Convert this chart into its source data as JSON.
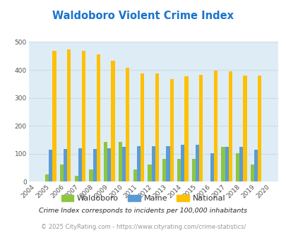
{
  "title": "Waldoboro Violent Crime Index",
  "years": [
    2004,
    2005,
    2006,
    2007,
    2008,
    2009,
    2010,
    2011,
    2012,
    2013,
    2014,
    2015,
    2016,
    2017,
    2018,
    2019,
    2020
  ],
  "waldoboro": [
    0,
    25,
    62,
    22,
    43,
    143,
    143,
    43,
    62,
    83,
    83,
    83,
    0,
    125,
    102,
    62,
    0
  ],
  "maine": [
    0,
    115,
    118,
    120,
    117,
    120,
    125,
    127,
    127,
    127,
    133,
    132,
    102,
    125,
    125,
    114,
    0
  ],
  "national": [
    0,
    469,
    474,
    467,
    455,
    432,
    407,
    387,
    387,
    367,
    378,
    383,
    398,
    394,
    381,
    379,
    0
  ],
  "waldoboro_color": "#8dc63f",
  "maine_color": "#5b9bd5",
  "national_color": "#ffc000",
  "fig_bg_color": "#ffffff",
  "plot_bg_color": "#deedf5",
  "ylim": [
    0,
    500
  ],
  "yticks": [
    0,
    100,
    200,
    300,
    400,
    500
  ],
  "legend_labels": [
    "Waldoboro",
    "Maine",
    "National"
  ],
  "footnote1": "Crime Index corresponds to incidents per 100,000 inhabitants",
  "footnote2": "© 2025 CityRating.com - https://www.cityrating.com/crime-statistics/",
  "title_color": "#1874cd",
  "footnote1_color": "#2a2a2a",
  "footnote2_color": "#999999",
  "bar_width": 0.25,
  "grid_color": "#c8dde8"
}
